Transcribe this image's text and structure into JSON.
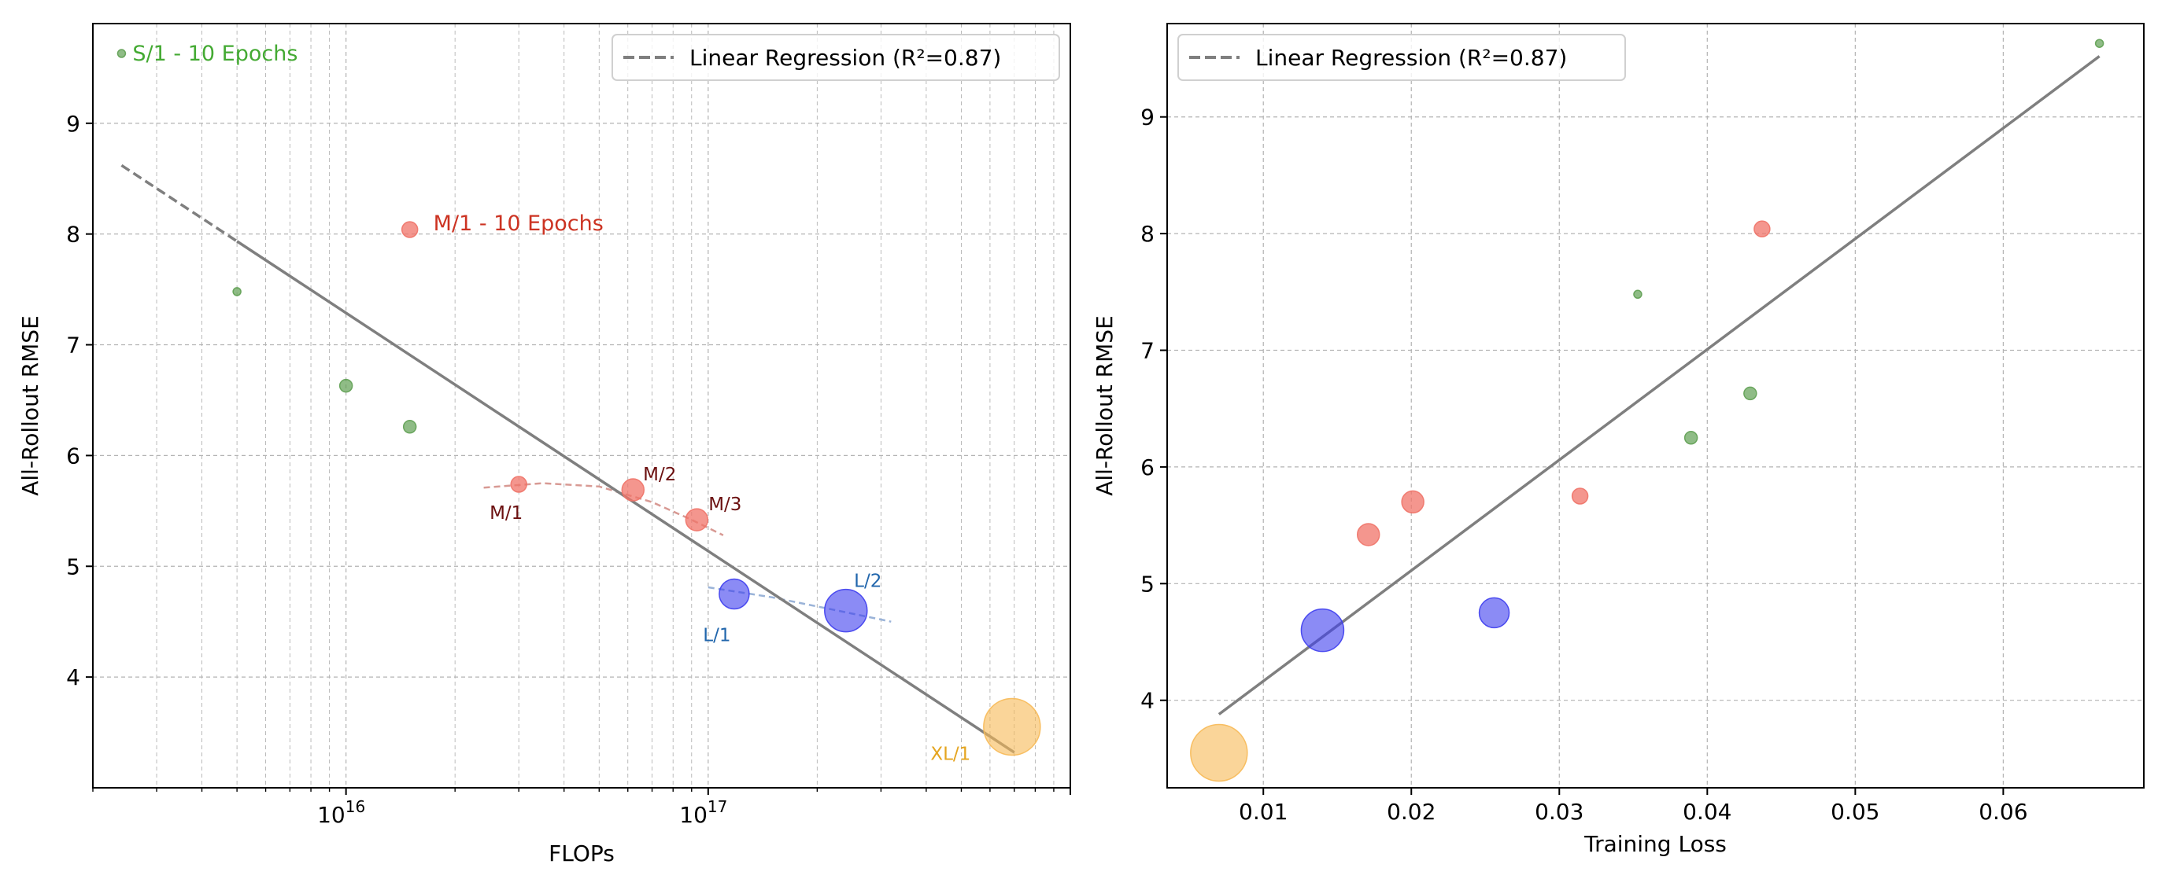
{
  "chart_data": [
    {
      "type": "scatter",
      "x_scale": "log",
      "xlabel": "FLOPs",
      "ylabel": "All-Rollout RMSE",
      "xlim": [
        2000000000000000.0,
        1e+18
      ],
      "ylim": [
        3.0,
        9.9
      ],
      "x_tick_labels": [
        {
          "base": "10",
          "exp": "16",
          "value": 1e+16
        },
        {
          "base": "10",
          "exp": "17",
          "value": 1e+17
        }
      ],
      "y_ticks": [
        4,
        5,
        6,
        7,
        8,
        9
      ],
      "grid": true,
      "legend": {
        "location": "top-right",
        "label": "Linear Regression (R²=0.87)"
      },
      "regression": {
        "x": [
          2400000000000000.0,
          7e+17
        ],
        "y": [
          8.62,
          3.32
        ],
        "dash_until_x": 5000000000000000.0,
        "color": "#7f7f7f"
      },
      "points": [
        {
          "x": 2400000000000000.0,
          "y": 9.63,
          "size": "xs",
          "series": "S"
        },
        {
          "x": 5000000000000000.0,
          "y": 7.48,
          "size": "xs",
          "series": "S"
        },
        {
          "x": 1e+16,
          "y": 6.63,
          "size": "s",
          "series": "S"
        },
        {
          "x": 1.5e+16,
          "y": 6.26,
          "size": "s",
          "series": "S"
        },
        {
          "x": 1.5e+16,
          "y": 8.04,
          "size": "m",
          "series": "M"
        },
        {
          "x": 3e+16,
          "y": 5.74,
          "size": "m",
          "series": "M"
        },
        {
          "x": 6.2e+16,
          "y": 5.69,
          "size": "l",
          "series": "M"
        },
        {
          "x": 9.3e+16,
          "y": 5.42,
          "size": "l",
          "series": "M"
        },
        {
          "x": 1.18e+17,
          "y": 4.75,
          "size": "xl",
          "series": "L"
        },
        {
          "x": 2.4e+17,
          "y": 4.6,
          "size": "xxl",
          "series": "L"
        },
        {
          "x": 6.9e+17,
          "y": 3.55,
          "size": "xxxl",
          "series": "XL"
        }
      ],
      "trend_curves": [
        {
          "series": "M",
          "x": [
            2.4e+16,
            3.5e+16,
            5e+16,
            7e+16,
            9e+16,
            1.1e+17
          ],
          "y": [
            5.71,
            5.75,
            5.72,
            5.58,
            5.42,
            5.28
          ]
        },
        {
          "series": "L",
          "x": [
            1e+17,
            1.5e+17,
            2.2e+17,
            3.2e+17
          ],
          "y": [
            4.81,
            4.72,
            4.61,
            4.5
          ]
        }
      ],
      "annotations": [
        {
          "text": "S/1 - 10 Epochs",
          "x": 2400000000000000.0,
          "y": 9.63,
          "series": "S",
          "dx": 14,
          "dy": 0,
          "anchor": "start",
          "size": "big"
        },
        {
          "text": "M/1 - 10 Epochs",
          "x": 1.5e+16,
          "y": 8.04,
          "series": "M",
          "dx": 30,
          "dy": -8,
          "anchor": "start",
          "size": "big"
        },
        {
          "text": "M/1",
          "x": 3e+16,
          "y": 5.74,
          "series": "Mlabel",
          "dx": -16,
          "dy": 36,
          "anchor": "middle",
          "size": "small"
        },
        {
          "text": "M/2",
          "x": 6.2e+16,
          "y": 5.69,
          "series": "Mlabel",
          "dx": 34,
          "dy": -20,
          "anchor": "middle",
          "size": "small"
        },
        {
          "text": "M/3",
          "x": 9.3e+16,
          "y": 5.42,
          "series": "Mlabel",
          "dx": 36,
          "dy": -20,
          "anchor": "middle",
          "size": "small"
        },
        {
          "text": "L/1",
          "x": 1.18e+17,
          "y": 4.75,
          "series": "Llabel",
          "dx": -22,
          "dy": 52,
          "anchor": "middle",
          "size": "small"
        },
        {
          "text": "L/2",
          "x": 2.4e+17,
          "y": 4.6,
          "series": "Llabel",
          "dx": 28,
          "dy": -38,
          "anchor": "middle",
          "size": "small"
        },
        {
          "text": "XL/1",
          "x": 6.9e+17,
          "y": 3.55,
          "series": "XLlabel",
          "dx": -78,
          "dy": 34,
          "anchor": "middle",
          "size": "small"
        }
      ]
    },
    {
      "type": "scatter",
      "x_scale": "linear",
      "xlabel": "Training Loss",
      "ylabel": "All-Rollout RMSE",
      "xlim": [
        0.0035,
        0.0695
      ],
      "ylim": [
        3.25,
        9.8
      ],
      "x_ticks": [
        0.01,
        0.02,
        0.03,
        0.04,
        0.05,
        0.06
      ],
      "x_tick_labels": [
        "0.01",
        "0.02",
        "0.03",
        "0.04",
        "0.05",
        "0.06"
      ],
      "y_ticks": [
        4,
        5,
        6,
        7,
        8,
        9
      ],
      "grid": true,
      "legend": {
        "location": "top-left",
        "label": "Linear Regression (R²=0.87)"
      },
      "regression": {
        "x": [
          0.007,
          0.0665
        ],
        "y": [
          3.88,
          9.52
        ],
        "color": "#7f7f7f"
      },
      "points": [
        {
          "x": 0.0665,
          "y": 9.63,
          "size": "xs",
          "series": "S"
        },
        {
          "x": 0.0353,
          "y": 7.48,
          "size": "xs",
          "series": "S"
        },
        {
          "x": 0.0429,
          "y": 6.63,
          "size": "s",
          "series": "S"
        },
        {
          "x": 0.0389,
          "y": 6.25,
          "size": "s",
          "series": "S"
        },
        {
          "x": 0.0437,
          "y": 8.04,
          "size": "m",
          "series": "M"
        },
        {
          "x": 0.0314,
          "y": 5.75,
          "size": "m",
          "series": "M"
        },
        {
          "x": 0.0201,
          "y": 5.7,
          "size": "l",
          "series": "M"
        },
        {
          "x": 0.0171,
          "y": 5.42,
          "size": "l",
          "series": "M"
        },
        {
          "x": 0.0256,
          "y": 4.75,
          "size": "xl",
          "series": "L"
        },
        {
          "x": 0.014,
          "y": 4.6,
          "size": "xxl",
          "series": "L"
        },
        {
          "x": 0.007,
          "y": 3.55,
          "size": "xxxl",
          "series": "XL"
        }
      ]
    }
  ],
  "colors": {
    "S": "#5fa052",
    "M": "#f07368",
    "L": "#3d3dee",
    "XL": "#f7b955",
    "Slabel": "#44aa33",
    "Mbig": "#cc3322",
    "Mlabel": "#6b1010",
    "Llabel": "#2166ac",
    "XLlabel": "#e5a520",
    "regression": "#7f7f7f",
    "grid": "#b3b3b3"
  }
}
